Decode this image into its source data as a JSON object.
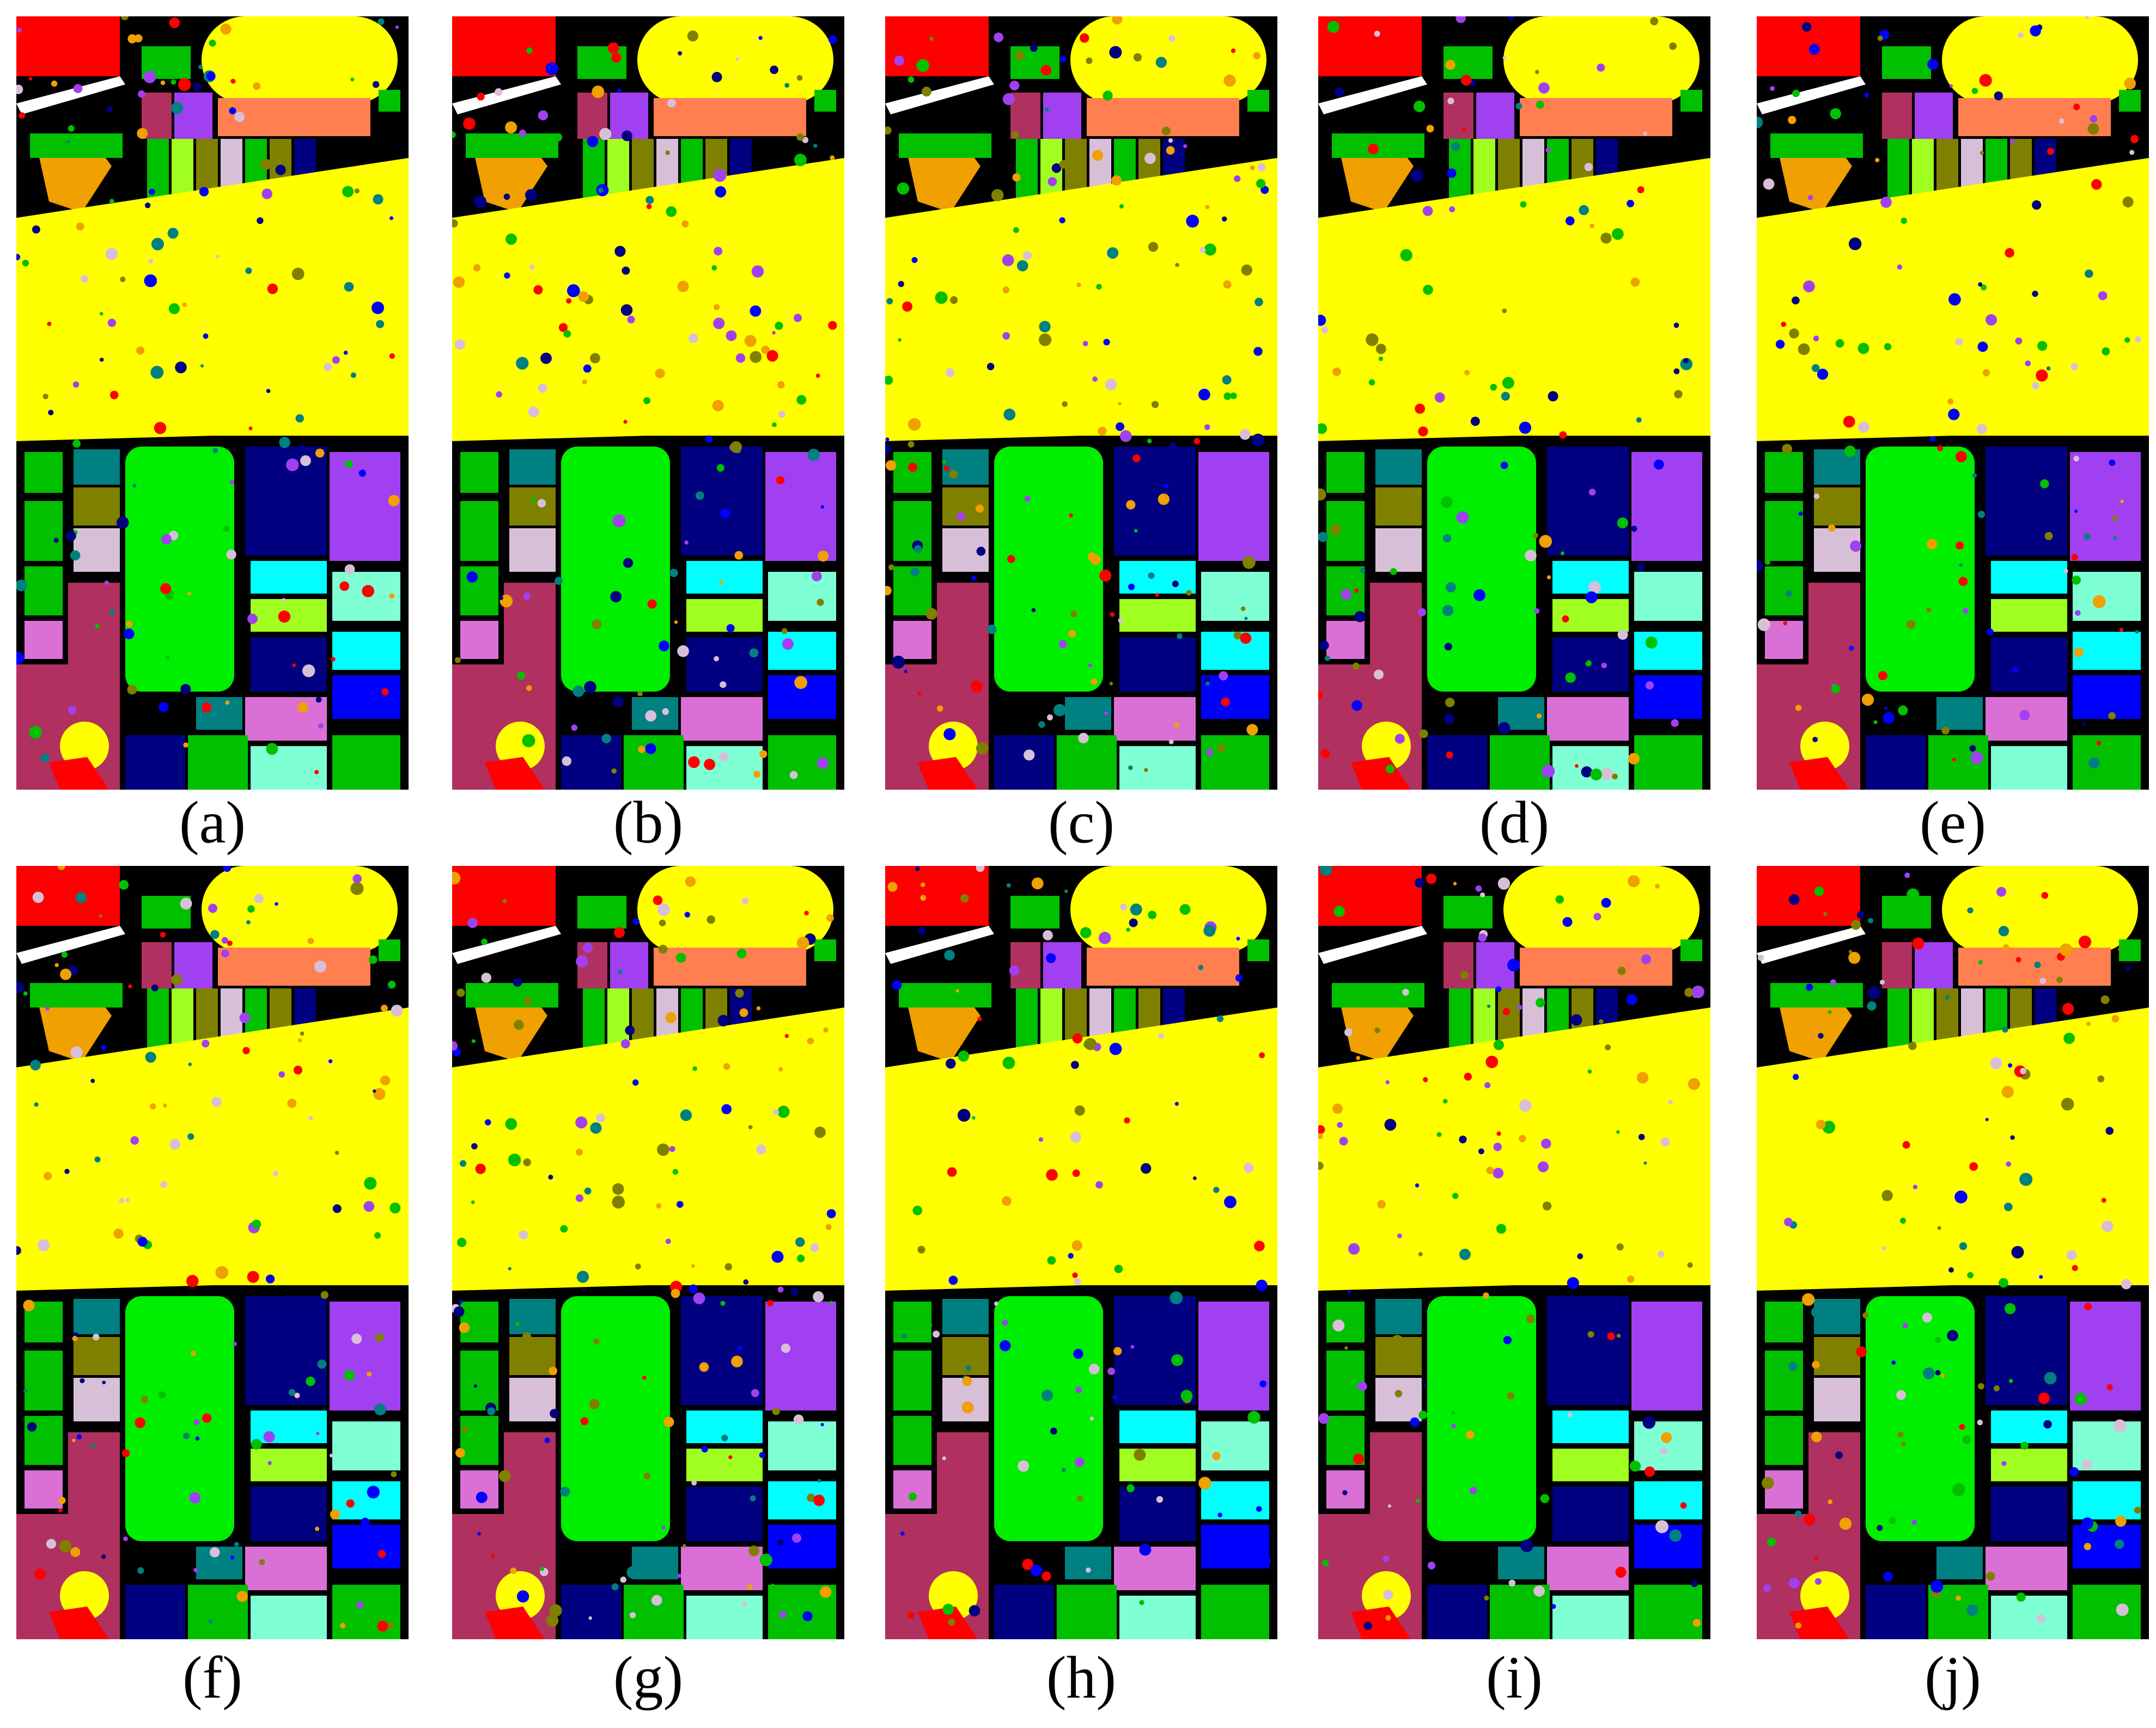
{
  "figure": {
    "panels": [
      {
        "caption": "(a)"
      },
      {
        "caption": "(b)"
      },
      {
        "caption": "(c)"
      },
      {
        "caption": "(d)"
      },
      {
        "caption": "(e)"
      },
      {
        "caption": "(f)"
      },
      {
        "caption": "(g)"
      },
      {
        "caption": "(h)"
      },
      {
        "caption": "(i)"
      },
      {
        "caption": "(j)"
      }
    ],
    "class_colors": {
      "background": "#000000",
      "red": "#ff0000",
      "yellow": "#ffff00",
      "green": "#00c000",
      "bright_green": "#00ee00",
      "maroon": "#b03060",
      "purple": "#a040f0",
      "salmon": "#ff7f50",
      "olive": "#808000",
      "navy": "#000080",
      "orange": "#f0a000",
      "teal": "#008080",
      "light_pink": "#d8bfd8",
      "cyan": "#00ffff",
      "aquamarine": "#7fffd4",
      "blue": "#0000ff",
      "lime": "#a0ff20",
      "orchid": "#da70d6",
      "white": "#ffffff"
    }
  }
}
